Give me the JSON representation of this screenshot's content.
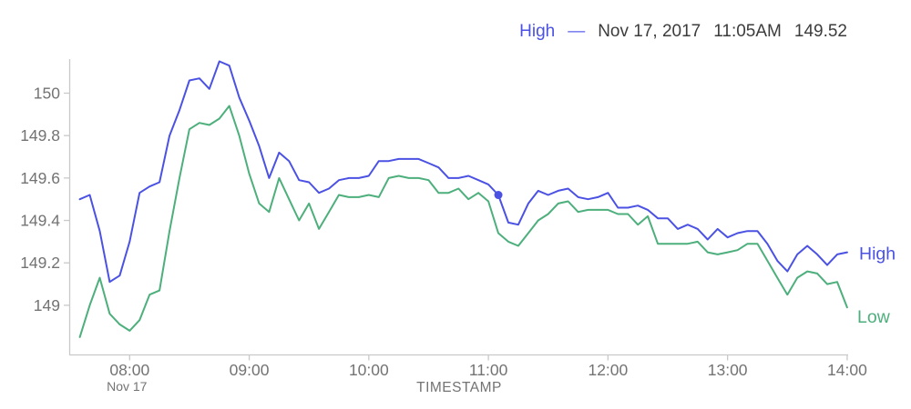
{
  "header": {
    "series_label": "High",
    "separator": "—",
    "date": "Nov 17, 2017",
    "time": "11:05AM",
    "value": "149.52"
  },
  "colors": {
    "high_line": "#4b52e3",
    "low_line": "#4daf7c",
    "readout_text": "#3c3c3c",
    "axis_text": "#737373",
    "axis_line": "#c9c9c9",
    "background": "#ffffff"
  },
  "axis": {
    "x_label": "TIMESTAMP",
    "x_sublabel": "Nov 17",
    "x_ticks": [
      "08:00",
      "09:00",
      "10:00",
      "11:00",
      "12:00",
      "13:00",
      "14:00"
    ],
    "y_ticks": [
      "150",
      "149.8",
      "149.6",
      "149.4",
      "149.2",
      "149"
    ]
  },
  "end_labels": {
    "high": "High",
    "low": "Low"
  },
  "chart_data": {
    "type": "line",
    "x": [
      "07:35",
      "07:40",
      "07:45",
      "07:50",
      "07:55",
      "08:00",
      "08:05",
      "08:10",
      "08:15",
      "08:20",
      "08:25",
      "08:30",
      "08:35",
      "08:40",
      "08:45",
      "08:50",
      "08:55",
      "09:00",
      "09:05",
      "09:10",
      "09:15",
      "09:20",
      "09:25",
      "09:30",
      "09:35",
      "09:40",
      "09:45",
      "09:50",
      "09:55",
      "10:00",
      "10:05",
      "10:10",
      "10:15",
      "10:20",
      "10:25",
      "10:30",
      "10:35",
      "10:40",
      "10:45",
      "10:50",
      "10:55",
      "11:00",
      "11:05",
      "11:10",
      "11:15",
      "11:20",
      "11:25",
      "11:30",
      "11:35",
      "11:40",
      "11:45",
      "11:50",
      "11:55",
      "12:00",
      "12:05",
      "12:10",
      "12:15",
      "12:20",
      "12:25",
      "12:30",
      "12:35",
      "12:40",
      "12:45",
      "12:50",
      "12:55",
      "13:00",
      "13:05",
      "13:10",
      "13:15",
      "13:20",
      "13:25",
      "13:30",
      "13:35",
      "13:40",
      "13:45",
      "13:50",
      "13:55",
      "14:00"
    ],
    "series": [
      {
        "name": "High",
        "color": "#4b52e3",
        "values": [
          149.5,
          149.52,
          149.35,
          149.11,
          149.14,
          149.3,
          149.53,
          149.56,
          149.58,
          149.8,
          149.92,
          150.06,
          150.07,
          150.02,
          150.15,
          150.13,
          149.98,
          149.87,
          149.75,
          149.6,
          149.72,
          149.68,
          149.59,
          149.58,
          149.53,
          149.55,
          149.59,
          149.6,
          149.6,
          149.61,
          149.68,
          149.68,
          149.69,
          149.69,
          149.69,
          149.67,
          149.65,
          149.6,
          149.6,
          149.61,
          149.59,
          149.57,
          149.52,
          149.39,
          149.38,
          149.48,
          149.54,
          149.52,
          149.54,
          149.55,
          149.51,
          149.5,
          149.51,
          149.53,
          149.46,
          149.46,
          149.47,
          149.45,
          149.41,
          149.41,
          149.36,
          149.38,
          149.36,
          149.31,
          149.36,
          149.32,
          149.34,
          149.35,
          149.35,
          149.29,
          149.21,
          149.16,
          149.24,
          149.28,
          149.24,
          149.19,
          149.24,
          149.25
        ]
      },
      {
        "name": "Low",
        "color": "#4daf7c",
        "values": [
          148.85,
          149.0,
          149.13,
          148.96,
          148.91,
          148.88,
          148.93,
          149.05,
          149.07,
          149.35,
          149.6,
          149.83,
          149.86,
          149.85,
          149.88,
          149.94,
          149.8,
          149.62,
          149.48,
          149.44,
          149.6,
          149.5,
          149.4,
          149.48,
          149.36,
          149.44,
          149.52,
          149.51,
          149.51,
          149.52,
          149.51,
          149.6,
          149.61,
          149.6,
          149.6,
          149.59,
          149.53,
          149.53,
          149.55,
          149.5,
          149.53,
          149.49,
          149.34,
          149.3,
          149.28,
          149.34,
          149.4,
          149.43,
          149.48,
          149.49,
          149.44,
          149.45,
          149.45,
          149.45,
          149.43,
          149.43,
          149.38,
          149.42,
          149.29,
          149.29,
          149.29,
          149.29,
          149.3,
          149.25,
          149.24,
          149.25,
          149.26,
          149.29,
          149.29,
          149.21,
          149.13,
          149.05,
          149.13,
          149.16,
          149.15,
          149.1,
          149.11,
          148.99
        ]
      }
    ],
    "selected_point": {
      "series": "High",
      "x": "11:05",
      "value": 149.52
    },
    "title": "",
    "xlabel": "TIMESTAMP",
    "ylabel": "",
    "ylim": [
      148.77,
      150.16
    ],
    "x_range": [
      "07:35",
      "14:00"
    ],
    "grid": false,
    "legend_position": "top-right"
  }
}
